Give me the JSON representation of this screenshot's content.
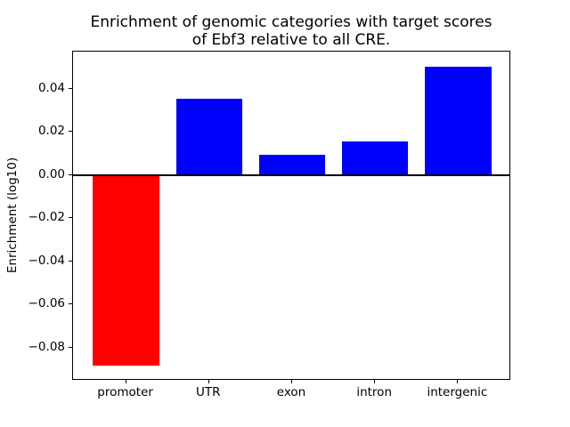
{
  "chart_data": {
    "type": "bar",
    "title": "Enrichment of genomic categories with target scores\nof Ebf3 relative to all CRE.",
    "xlabel": "",
    "ylabel": "Enrichment (log10)",
    "categories": [
      "promoter",
      "UTR",
      "exon",
      "intron",
      "intergenic"
    ],
    "values": [
      -0.0885,
      0.0355,
      0.0095,
      0.0155,
      0.0503
    ],
    "bar_colors": [
      "#ff0000",
      "#0000ff",
      "#0000ff",
      "#0000ff",
      "#0000ff"
    ],
    "bar_width": 0.8,
    "xlim": [
      -0.64,
      4.64
    ],
    "ylim": [
      -0.0954,
      0.0572
    ],
    "yticks": [
      0.04,
      0.02,
      0.0,
      -0.02,
      -0.04,
      -0.06,
      -0.08
    ],
    "ytick_labels": [
      "0.04",
      "0.02",
      "0.00",
      "−0.02",
      "−0.04",
      "−0.06",
      "−0.08"
    ],
    "zero_line": true,
    "grid": false,
    "legend": null,
    "axis_color": "#000000",
    "background_color": "#ffffff"
  }
}
